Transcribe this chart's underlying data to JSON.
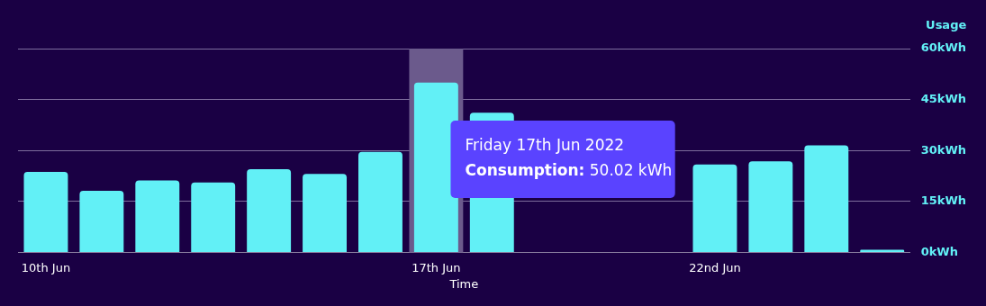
{
  "chart_data": {
    "type": "bar",
    "xlabel": "Time",
    "ylabel": "Usage",
    "categories": [
      "10th Jun",
      null,
      null,
      null,
      null,
      null,
      null,
      "17th Jun",
      null,
      null,
      null,
      null,
      "22nd Jun",
      null,
      null,
      null
    ],
    "values": [
      23.7,
      18.1,
      21.2,
      20.6,
      24.5,
      23.1,
      29.6,
      50.02,
      41.1,
      null,
      null,
      null,
      25.9,
      26.8,
      31.5,
      0.8
    ],
    "color": "#62f0f6",
    "ylim": [
      0,
      60
    ],
    "yticks": [
      {
        "value": 0,
        "label": "0kWh"
      },
      {
        "value": 15,
        "label": "15kWh"
      },
      {
        "value": 30,
        "label": "30kWh"
      },
      {
        "value": 45,
        "label": "45kWh"
      },
      {
        "value": 60,
        "label": "60kWh"
      }
    ],
    "grid": "y",
    "bands": [
      {
        "axis": "x",
        "from": "17th Jun",
        "to": "17th Jun",
        "color": "#6b5a8c"
      }
    ],
    "annotations": [
      "Friday 17th Jun 2022\nConsumption: 50.02 kWh"
    ]
  }
}
